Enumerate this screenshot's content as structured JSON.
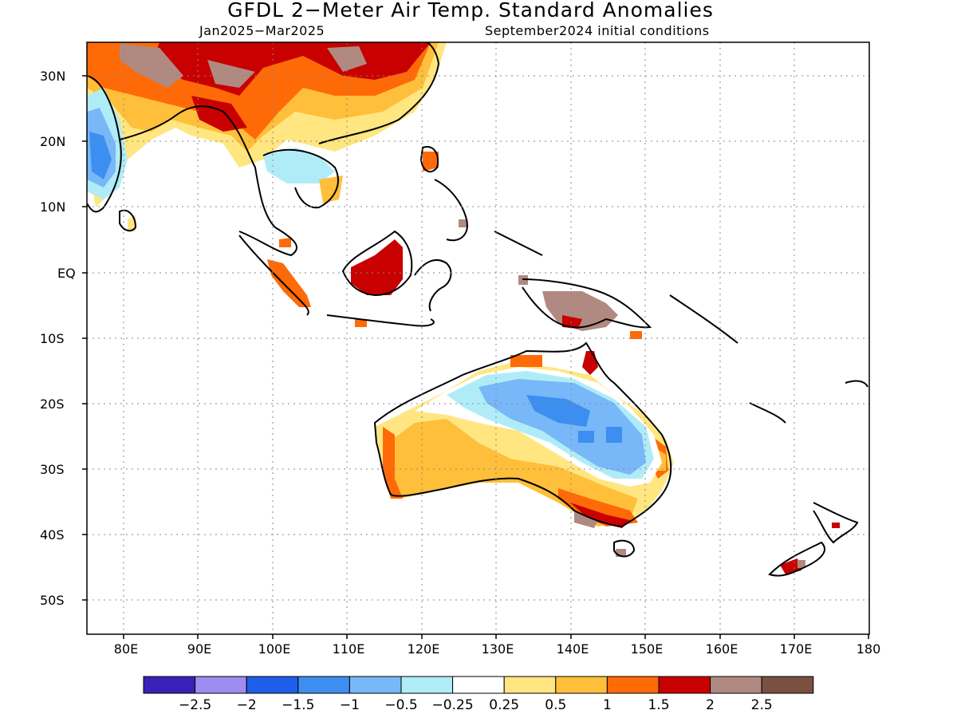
{
  "title": "GFDL 2−Meter Air Temp. Standard Anomalies",
  "subtitle_left": "Jan2025−Mar2025",
  "subtitle_right": "September2024 initial conditions",
  "lat_labels": [
    "30N",
    "20N",
    "10N",
    "EQ",
    "10S",
    "20S",
    "30S",
    "40S",
    "50S"
  ],
  "lon_labels": [
    "80E",
    "90E",
    "100E",
    "110E",
    "120E",
    "130E",
    "140E",
    "150E",
    "160E",
    "170E",
    "180"
  ],
  "colorbar": {
    "colors": [
      "#3a20b8",
      "#9e8cf0",
      "#1e5ee8",
      "#3c8ff0",
      "#78b8f8",
      "#b0ecf8",
      "#ffffff",
      "#ffe680",
      "#ffbf3a",
      "#ff6a08",
      "#c80000",
      "#b08a80",
      "#7a5040"
    ],
    "labels": [
      "−2.5",
      "−2",
      "−1.5",
      "−1",
      "−0.5",
      "−0.25",
      "0.25",
      "0.5",
      "1",
      "1.5",
      "2",
      "2.5"
    ]
  },
  "map_data": {
    "lon_range": [
      75,
      180
    ],
    "lat_range": [
      -55,
      35
    ],
    "grid": true
  }
}
